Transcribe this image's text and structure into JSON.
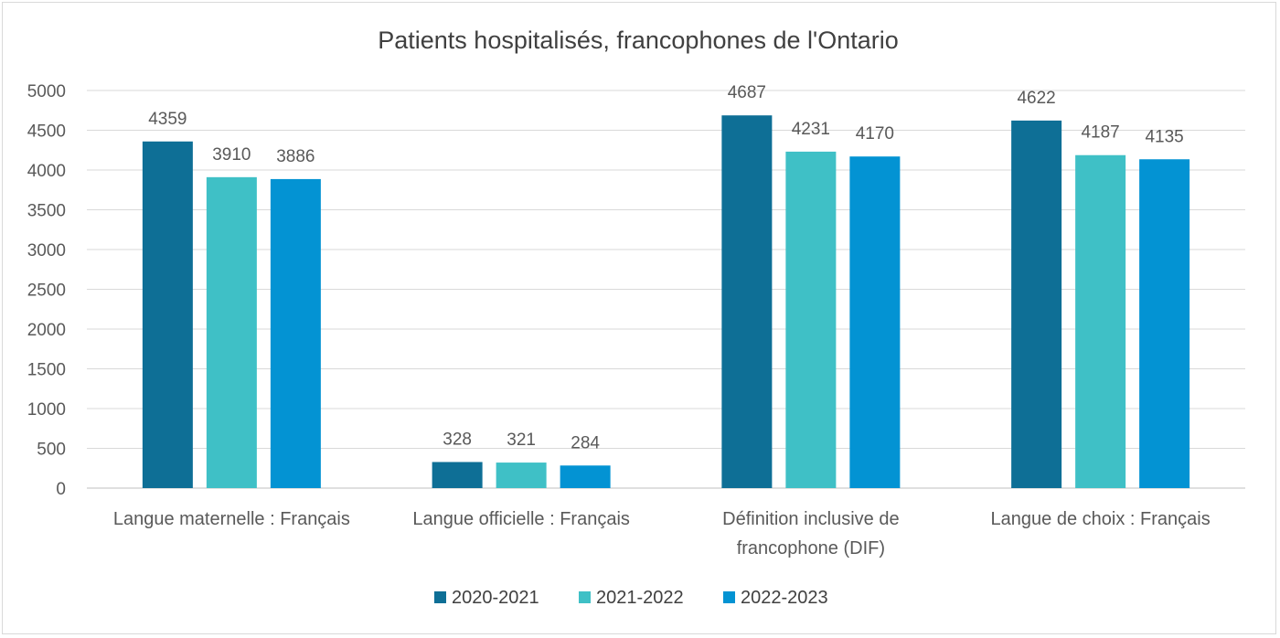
{
  "chart_data": {
    "type": "bar",
    "title": "Patients hospitalisés, francophones de l'Ontario",
    "categories": [
      [
        "Langue maternelle : Français"
      ],
      [
        "Langue officielle : Français"
      ],
      [
        "Définition inclusive de",
        "francophone (DIF)"
      ],
      [
        "Langue de choix : Français"
      ]
    ],
    "series": [
      {
        "name": "2020-2021",
        "color": "#0e6f96",
        "values": [
          4359,
          328,
          4687,
          4622
        ]
      },
      {
        "name": "2021-2022",
        "color": "#3fc0c6",
        "values": [
          3910,
          321,
          4231,
          4187
        ]
      },
      {
        "name": "2022-2023",
        "color": "#0393d3",
        "values": [
          3886,
          284,
          4170,
          4135
        ]
      }
    ],
    "ylim": [
      0,
      5000
    ],
    "yticks": [
      0,
      500,
      1000,
      1500,
      2000,
      2500,
      3000,
      3500,
      4000,
      4500,
      5000
    ],
    "grid": true,
    "legend_position": "bottom",
    "data_labels": true
  }
}
